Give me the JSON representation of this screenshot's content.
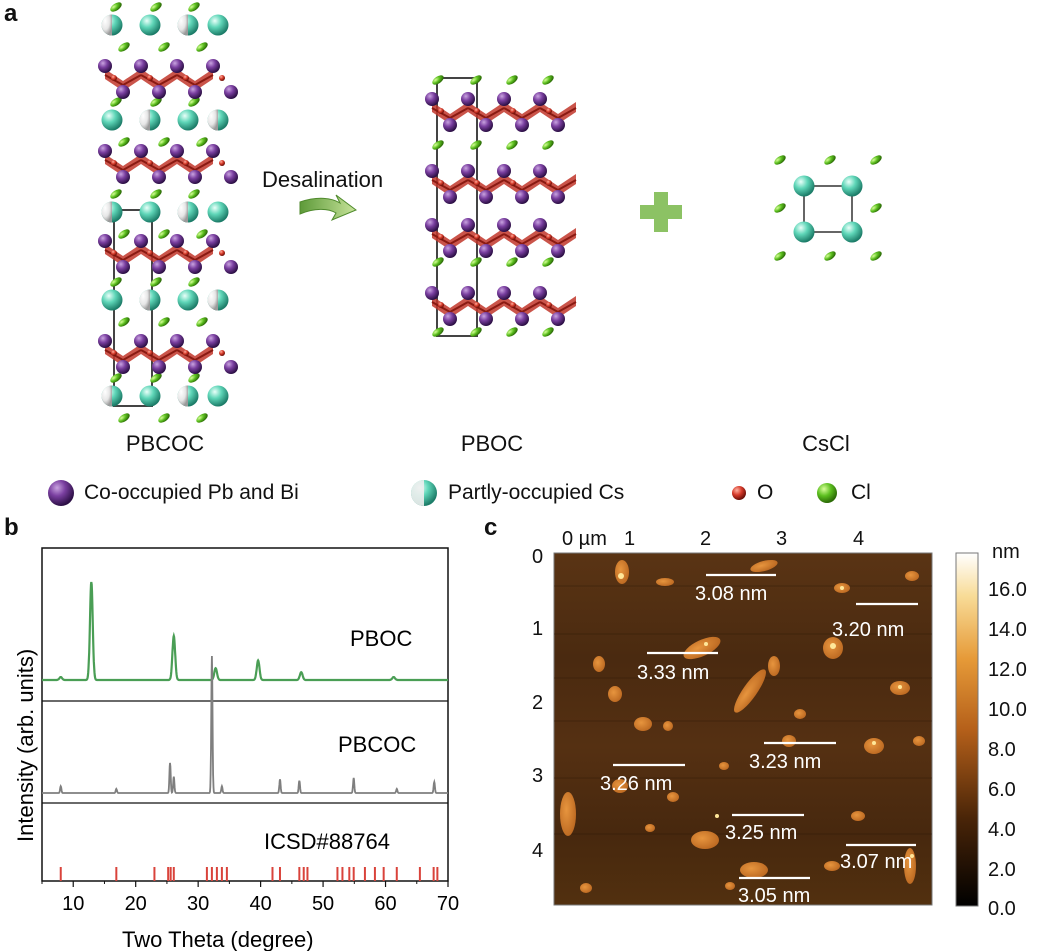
{
  "panel_a": {
    "letter": "a",
    "arrow_label": "Desalination",
    "structures": [
      "PBCOC",
      "PBOC",
      "CsCl"
    ],
    "legend": [
      {
        "label": "Co-occupied Pb and Bi",
        "color": "#7a3fa0"
      },
      {
        "label": "Partly-occupied Cs",
        "color": "#5fd6b8"
      },
      {
        "label": "O",
        "color": "#d63a2a"
      },
      {
        "label": "Cl",
        "color": "#5cbf1f"
      }
    ]
  },
  "panel_b": {
    "letter": "b",
    "chart_data": {
      "type": "line",
      "xlabel": "Two Theta (degree)",
      "ylabel": "Intensity (arb. units)",
      "xlim": [
        5,
        70
      ],
      "xticks": [
        10,
        20,
        30,
        40,
        50,
        60,
        70
      ],
      "series": [
        {
          "name": "PBOC",
          "color": "#4a9e55",
          "peaks": [
            [
              8,
              0.03
            ],
            [
              12.9,
              1.0
            ],
            [
              26.1,
              0.45
            ],
            [
              32.8,
              0.12
            ],
            [
              39.6,
              0.2
            ],
            [
              46.5,
              0.08
            ],
            [
              61.3,
              0.03
            ]
          ]
        },
        {
          "name": "PBCOC",
          "color": "#7f7f7f",
          "peaks": [
            [
              8.0,
              0.05
            ],
            [
              16.9,
              0.03
            ],
            [
              25.5,
              0.22
            ],
            [
              26.1,
              0.12
            ],
            [
              32.2,
              1.0
            ],
            [
              33.8,
              0.05
            ],
            [
              43.1,
              0.1
            ],
            [
              46.2,
              0.09
            ],
            [
              54.9,
              0.11
            ],
            [
              61.8,
              0.03
            ],
            [
              67.8,
              0.08
            ]
          ]
        },
        {
          "name": "ICSD#88764",
          "color": "#d9433b",
          "sticks": [
            8.0,
            16.9,
            23.0,
            25.2,
            25.6,
            26.1,
            31.4,
            32.2,
            33.0,
            33.8,
            34.6,
            41.9,
            43.1,
            46.2,
            46.9,
            47.5,
            52.3,
            53.1,
            54.2,
            54.9,
            56.7,
            58.3,
            59.7,
            61.8,
            65.5,
            67.7,
            68.3
          ]
        }
      ]
    }
  },
  "panel_c": {
    "letter": "c",
    "x_unit_label": "0 µm",
    "x_ticks": [
      "1",
      "2",
      "3",
      "4"
    ],
    "y_ticks": [
      "0",
      "1",
      "2",
      "3",
      "4"
    ],
    "colorbar_unit": "nm",
    "colorbar_ticks": [
      "16.0",
      "14.0",
      "12.0",
      "10.0",
      "8.0",
      "6.0",
      "4.0",
      "2.0",
      "0.0"
    ],
    "heights": [
      "3.08 nm",
      "3.20 nm",
      "3.33 nm",
      "3.23 nm",
      "3.26 nm",
      "3.25 nm",
      "3.07 nm",
      "3.05 nm"
    ]
  }
}
